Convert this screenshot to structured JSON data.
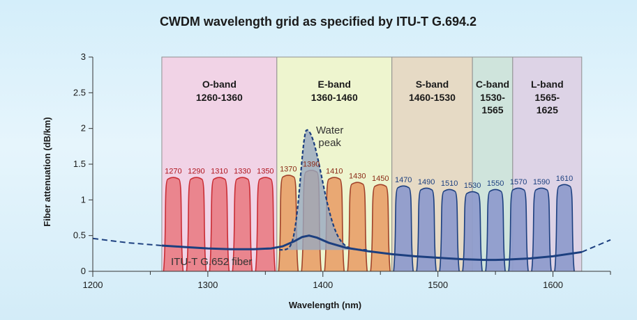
{
  "chart_data": {
    "type": "line",
    "title": "CWDM wavelength grid as specified by ITU-T G.694.2",
    "xlabel": "Wavelength (nm)",
    "ylabel": "Fiber attenuation (dB/km)",
    "xlim": [
      1200,
      1650
    ],
    "ylim": [
      0,
      3
    ],
    "xticks": [
      1200,
      1300,
      1400,
      1500,
      1600
    ],
    "yticks": [
      0,
      0.5,
      1,
      1.5,
      2,
      2.5,
      3
    ],
    "ytick_labels": [
      "0",
      "0.5",
      "1",
      "1.5",
      "2",
      "2.5",
      "3"
    ],
    "grid": false,
    "bands": [
      {
        "name": "O-band",
        "range": "1260-1360",
        "start": 1260,
        "end": 1360,
        "color": "#f1d3e6"
      },
      {
        "name": "E-band",
        "range": "1360-1460",
        "start": 1360,
        "end": 1460,
        "color": "#eef5cf"
      },
      {
        "name": "S-band",
        "range": "1460-1530",
        "start": 1460,
        "end": 1530,
        "color": "#e6dac5"
      },
      {
        "name": "C-band",
        "range": "1530-\n1565",
        "start": 1530,
        "end": 1565,
        "color": "#cfe4dc"
      },
      {
        "name": "L-band",
        "range": "1565-\n1625",
        "start": 1565,
        "end": 1625,
        "color": "#ddd3e6"
      }
    ],
    "channels": [
      {
        "label": "1270",
        "center": 1270,
        "peak": 1.3
      },
      {
        "label": "1290",
        "center": 1290,
        "peak": 1.3
      },
      {
        "label": "1310",
        "center": 1310,
        "peak": 1.3
      },
      {
        "label": "1330",
        "center": 1330,
        "peak": 1.3
      },
      {
        "label": "1350",
        "center": 1350,
        "peak": 1.3
      },
      {
        "label": "1370",
        "center": 1370,
        "peak": 1.33
      },
      {
        "label": "1390",
        "center": 1390,
        "peak": 1.4
      },
      {
        "label": "1410",
        "center": 1410,
        "peak": 1.3
      },
      {
        "label": "1430",
        "center": 1430,
        "peak": 1.23
      },
      {
        "label": "1450",
        "center": 1450,
        "peak": 1.2
      },
      {
        "label": "1470",
        "center": 1470,
        "peak": 1.18
      },
      {
        "label": "1490",
        "center": 1490,
        "peak": 1.15
      },
      {
        "label": "1510",
        "center": 1510,
        "peak": 1.13
      },
      {
        "label": "1530",
        "center": 1530,
        "peak": 1.1
      },
      {
        "label": "1550",
        "center": 1550,
        "peak": 1.13
      },
      {
        "label": "1570",
        "center": 1570,
        "peak": 1.15
      },
      {
        "label": "1590",
        "center": 1590,
        "peak": 1.15
      },
      {
        "label": "1610",
        "center": 1610,
        "peak": 1.2
      }
    ],
    "channel_colors": {
      "o": "#e98189",
      "e": "#e8a36e",
      "sl": "#8f9ccc"
    },
    "channel_strokes": {
      "o": "#c92d35",
      "e": "#a0422a",
      "sl": "#1c3f7f"
    },
    "channel_label_colors": {
      "o": "#b0161e",
      "e": "#8a2a16",
      "sl": "#1c3f7f"
    },
    "water_peak": {
      "label_line1": "Water",
      "label_line2": "peak",
      "center": 1386,
      "peak": 1.98,
      "fill": "#97a7bf",
      "stroke": "#1c3f7f"
    },
    "fiber_curve": {
      "name": "ITU-T G.652 fiber",
      "color": "#1c3f7f",
      "x": [
        1200,
        1230,
        1260,
        1280,
        1300,
        1320,
        1340,
        1355,
        1365,
        1375,
        1382,
        1388,
        1395,
        1405,
        1420,
        1440,
        1460,
        1480,
        1500,
        1520,
        1540,
        1550,
        1560,
        1580,
        1600,
        1625,
        1650
      ],
      "y": [
        0.46,
        0.4,
        0.36,
        0.34,
        0.32,
        0.31,
        0.31,
        0.32,
        0.35,
        0.42,
        0.48,
        0.5,
        0.47,
        0.4,
        0.33,
        0.28,
        0.24,
        0.21,
        0.19,
        0.17,
        0.16,
        0.16,
        0.165,
        0.18,
        0.21,
        0.27,
        0.44
      ]
    }
  }
}
